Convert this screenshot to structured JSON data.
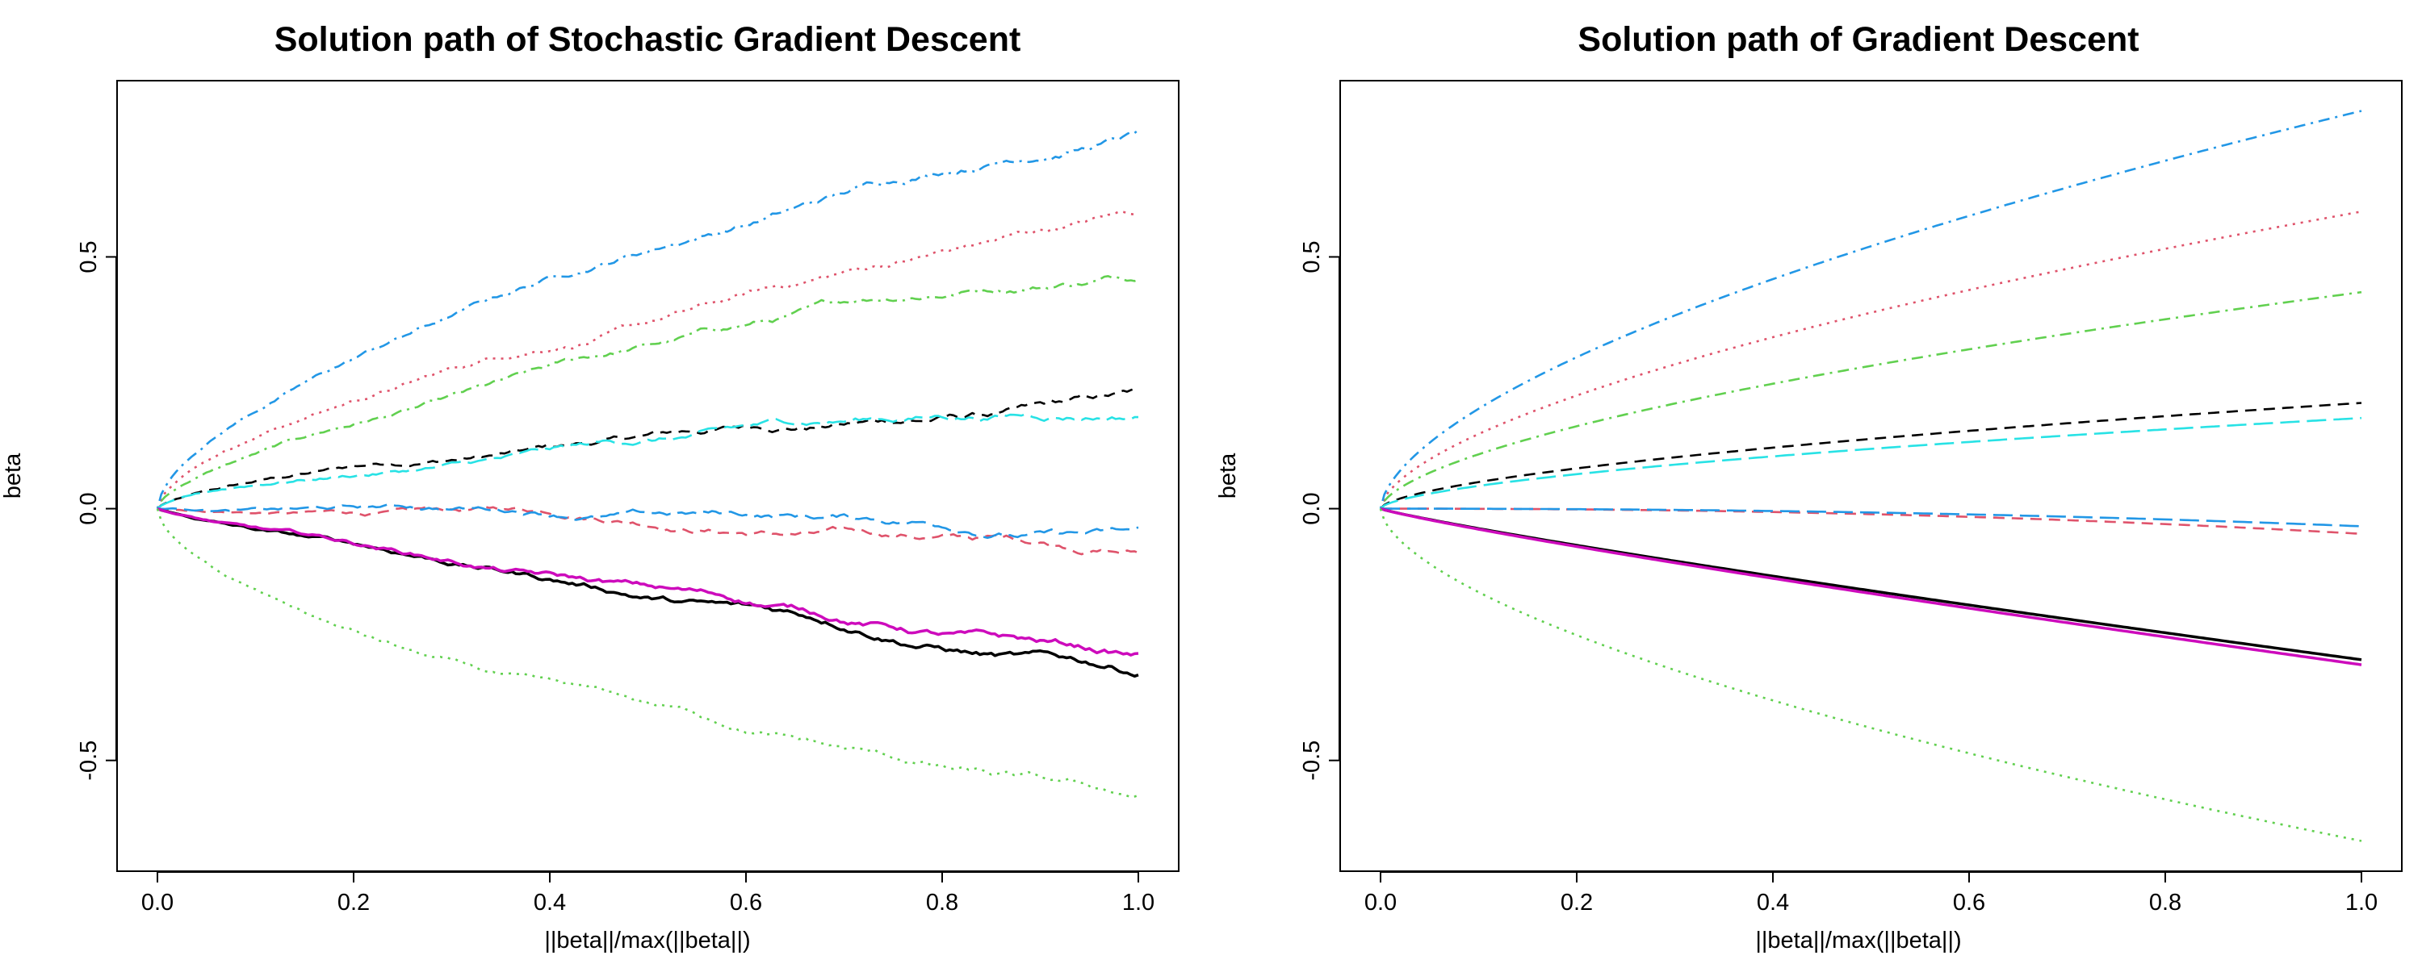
{
  "colors": {
    "black": "#000000",
    "red": "#DF536B",
    "green": "#61D04F",
    "blue": "#2297E6",
    "cyan": "#28E2E5",
    "magenta": "#CD0BBC",
    "gray": "#9E9E9E"
  },
  "chart_data": [
    {
      "type": "line",
      "title": "Solution path of Stochastic Gradient Descent",
      "xlabel": "||beta||/max(||beta||)",
      "ylabel": "beta",
      "xlim": [
        0,
        1
      ],
      "ylim": [
        -0.72,
        0.85
      ],
      "xticks": [
        "0.0",
        "0.2",
        "0.4",
        "0.6",
        "0.8",
        "1.0"
      ],
      "yticks": [
        "-0.5",
        "0.0",
        "0.5"
      ],
      "grid": false,
      "legend": "none",
      "noise": 0.006,
      "series": [
        {
          "end": 0.19,
          "shape": "concave",
          "color": "black",
          "dash": "dashed"
        },
        {
          "end": -0.05,
          "shape": "flat",
          "color": "red",
          "dash": "dashed"
        },
        {
          "end": 0.43,
          "shape": "concave",
          "color": "green",
          "dash": "dotdash"
        },
        {
          "end": 0.6,
          "shape": "concave",
          "color": "red",
          "dash": "dotted"
        },
        {
          "end": 0.79,
          "shape": "concave",
          "color": "blue",
          "dash": "dotdash"
        },
        {
          "end": 0.18,
          "shape": "concave",
          "color": "cyan",
          "dash": "longdash"
        },
        {
          "end": -0.04,
          "shape": "flat",
          "color": "blue",
          "dash": "longdash"
        },
        {
          "end": -0.31,
          "shape": "linear",
          "color": "black",
          "dash": "solid"
        },
        {
          "end": -0.33,
          "shape": "linear",
          "color": "magenta",
          "dash": "solid"
        },
        {
          "end": -0.66,
          "shape": "concave",
          "color": "green",
          "dash": "dotted"
        }
      ]
    },
    {
      "type": "line",
      "title": "Solution path of Gradient Descent",
      "xlabel": "||beta||/max(||beta||)",
      "ylabel": "beta",
      "xlim": [
        0,
        1
      ],
      "ylim": [
        -0.72,
        0.85
      ],
      "xticks": [
        "0.0",
        "0.2",
        "0.4",
        "0.6",
        "0.8",
        "1.0"
      ],
      "yticks": [
        "-0.5",
        "0.0",
        "0.5"
      ],
      "grid": false,
      "legend": "none",
      "noise": 0,
      "series": [
        {
          "end": 0.21,
          "shape": "concave",
          "color": "black",
          "dash": "dashed"
        },
        {
          "end": -0.05,
          "shape": "flat",
          "color": "red",
          "dash": "dashed"
        },
        {
          "end": 0.43,
          "shape": "concave",
          "color": "green",
          "dash": "dotdash"
        },
        {
          "end": 0.59,
          "shape": "concave",
          "color": "red",
          "dash": "dotted"
        },
        {
          "end": 0.79,
          "shape": "concave",
          "color": "blue",
          "dash": "dotdash"
        },
        {
          "end": 0.18,
          "shape": "concave",
          "color": "cyan",
          "dash": "longdash"
        },
        {
          "end": -0.035,
          "shape": "flat",
          "color": "blue",
          "dash": "longdash"
        },
        {
          "end": -0.3,
          "shape": "linear",
          "color": "black",
          "dash": "solid"
        },
        {
          "end": -0.31,
          "shape": "linear",
          "color": "magenta",
          "dash": "solid"
        },
        {
          "end": -0.66,
          "shape": "concave",
          "color": "green",
          "dash": "dotted"
        }
      ]
    }
  ]
}
